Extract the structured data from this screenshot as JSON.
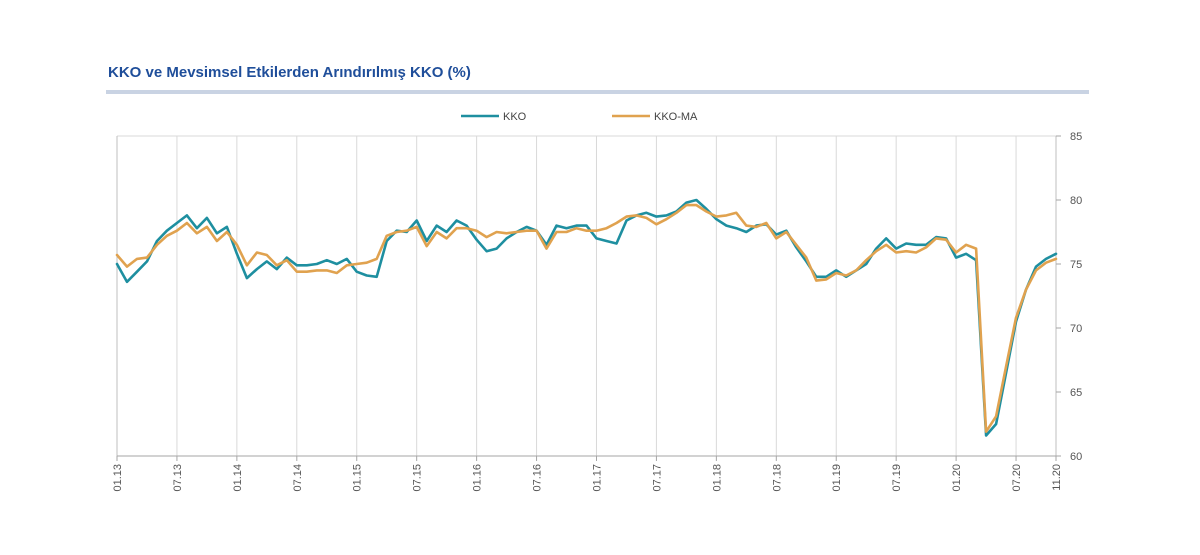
{
  "chart_data": {
    "type": "line",
    "title": "KKO ve Mevsimsel Etkilerden Arındırılmış KKO (%)",
    "ylim": [
      60,
      85
    ],
    "yticks": [
      60,
      65,
      70,
      75,
      80,
      85
    ],
    "x_tick_labels": [
      "01.13",
      "07.13",
      "01.14",
      "07.14",
      "01.15",
      "07.15",
      "01.16",
      "07.16",
      "01.17",
      "07.17",
      "01.18",
      "07.18",
      "01.19",
      "07.19",
      "01.20",
      "07.20",
      "11.20"
    ],
    "x_tick_months": [
      0,
      6,
      12,
      18,
      24,
      30,
      36,
      42,
      48,
      54,
      60,
      66,
      72,
      78,
      84,
      90,
      94
    ],
    "month_count": 95,
    "legend_position": "top-center",
    "series": [
      {
        "name": "KKO",
        "color": "#1e8fa0",
        "values": [
          75.0,
          73.6,
          74.4,
          75.2,
          76.8,
          77.6,
          78.2,
          78.8,
          77.8,
          78.6,
          77.4,
          77.9,
          75.8,
          73.9,
          74.6,
          75.2,
          74.6,
          75.5,
          74.9,
          74.9,
          75.0,
          75.3,
          75.0,
          75.4,
          74.4,
          74.1,
          74.0,
          76.8,
          77.6,
          77.5,
          78.4,
          76.8,
          78.0,
          77.5,
          78.4,
          78.0,
          76.9,
          76.0,
          76.2,
          77.0,
          77.5,
          77.9,
          77.6,
          76.5,
          78.0,
          77.8,
          78.0,
          78.0,
          77.0,
          76.8,
          76.6,
          78.4,
          78.8,
          79.0,
          78.7,
          78.8,
          79.1,
          79.8,
          80.0,
          79.3,
          78.5,
          78.0,
          77.8,
          77.5,
          78.0,
          78.1,
          77.3,
          77.6,
          76.3,
          75.2,
          74.0,
          74.0,
          74.5,
          74.0,
          74.5,
          75.0,
          76.2,
          77.0,
          76.2,
          76.6,
          76.5,
          76.5,
          77.1,
          77.0,
          75.5,
          75.8,
          75.3,
          61.6,
          62.5,
          66.5,
          70.5,
          73.0,
          74.8,
          75.4,
          75.8
        ]
      },
      {
        "name": "KKO-MA",
        "color": "#e0a24f",
        "values": [
          75.7,
          74.8,
          75.4,
          75.5,
          76.5,
          77.2,
          77.6,
          78.2,
          77.4,
          77.9,
          76.8,
          77.5,
          76.5,
          74.9,
          75.9,
          75.7,
          74.9,
          75.3,
          74.4,
          74.4,
          74.5,
          74.5,
          74.3,
          74.9,
          75.0,
          75.1,
          75.4,
          77.2,
          77.5,
          77.6,
          77.9,
          76.4,
          77.5,
          77.0,
          77.8,
          77.8,
          77.6,
          77.1,
          77.5,
          77.4,
          77.5,
          77.6,
          77.6,
          76.2,
          77.5,
          77.5,
          77.8,
          77.6,
          77.6,
          77.8,
          78.2,
          78.7,
          78.8,
          78.6,
          78.1,
          78.5,
          79.0,
          79.6,
          79.6,
          79.1,
          78.7,
          78.8,
          79.0,
          78.0,
          77.9,
          78.2,
          77.0,
          77.5,
          76.5,
          75.5,
          73.7,
          73.8,
          74.3,
          74.1,
          74.5,
          75.3,
          76.0,
          76.5,
          75.9,
          76.0,
          75.9,
          76.3,
          77.0,
          76.9,
          75.9,
          76.5,
          76.2,
          61.9,
          63.1,
          67.0,
          70.8,
          73.0,
          74.5,
          75.1,
          75.4
        ]
      }
    ]
  }
}
